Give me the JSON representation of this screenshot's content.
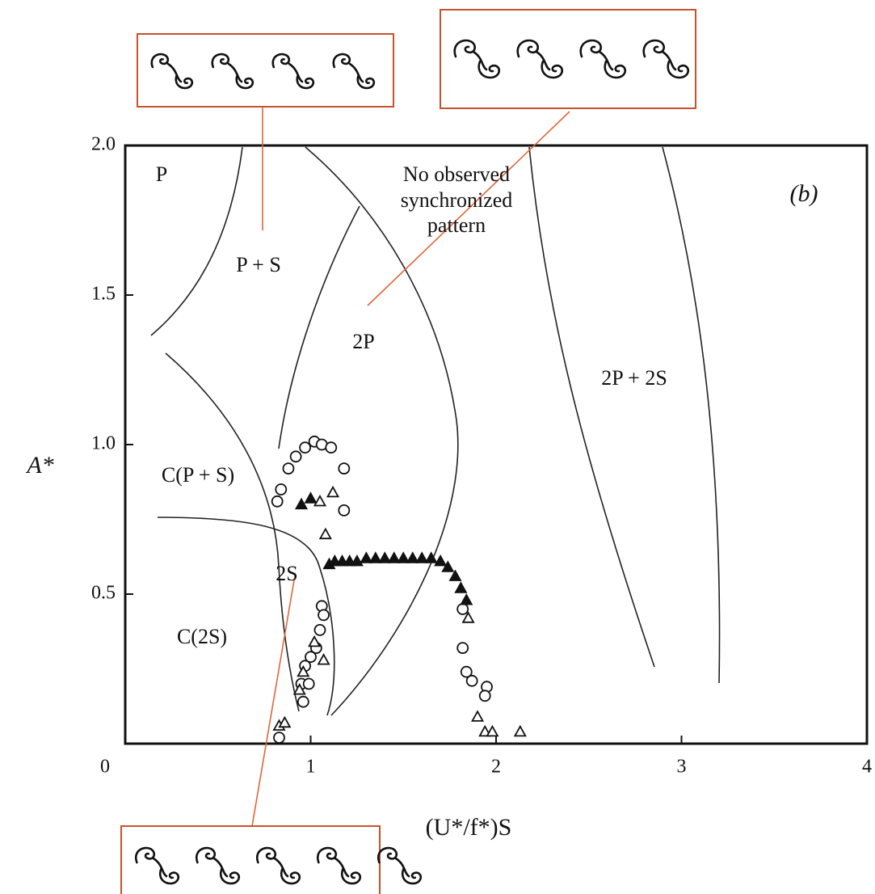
{
  "chart_data": {
    "type": "scatter",
    "xlabel": "(U*/f*)S",
    "ylabel": "A*",
    "panel_label": "(b)",
    "xlim": [
      0,
      4
    ],
    "ylim": [
      0,
      2
    ],
    "xticks": [
      0,
      1,
      2,
      3,
      4
    ],
    "yticks": [
      {
        "value": 0.5,
        "label": "0.5"
      },
      {
        "value": 1.0,
        "label": "1.0"
      },
      {
        "value": 1.5,
        "label": "1.5"
      },
      {
        "value": 2.0,
        "label": "2.0"
      }
    ],
    "annotations": [
      "P",
      "P + S",
      "No observed",
      "synchronized",
      "pattern",
      "2P",
      "2P + 2S",
      "C(P + S)",
      "2S",
      "C(2S)"
    ],
    "series": [
      {
        "marker": "circle",
        "color": "#111111",
        "x": [
          0.82,
          0.84,
          0.88,
          0.92,
          0.97,
          1.02,
          1.06,
          1.11,
          1.18,
          1.18,
          1.06,
          1.07,
          1.05,
          1.03,
          1.0,
          0.97,
          0.95,
          0.99,
          0.96,
          1.82,
          1.82,
          1.84,
          1.87,
          1.95,
          1.94,
          0.83
        ],
        "y": [
          0.81,
          0.85,
          0.92,
          0.96,
          0.99,
          1.01,
          1.0,
          0.99,
          0.92,
          0.78,
          0.46,
          0.43,
          0.38,
          0.32,
          0.29,
          0.26,
          0.2,
          0.2,
          0.14,
          0.45,
          0.32,
          0.24,
          0.21,
          0.19,
          0.16,
          0.02
        ]
      },
      {
        "marker": "triangle",
        "color": "#111111",
        "x": [
          1.08,
          1.05,
          1.12,
          1.02,
          1.07,
          0.96,
          0.94,
          0.83,
          0.86,
          1.85,
          1.9,
          1.94,
          1.98,
          2.13
        ],
        "y": [
          0.7,
          0.81,
          0.84,
          0.34,
          0.28,
          0.24,
          0.18,
          0.06,
          0.07,
          0.42,
          0.09,
          0.04,
          0.04,
          0.04
        ]
      },
      {
        "marker": "filled-triangle",
        "color": "#111111",
        "x": [
          0.95,
          1.0,
          1.1,
          1.13,
          1.17,
          1.21,
          1.25,
          1.3,
          1.35,
          1.4,
          1.45,
          1.5,
          1.55,
          1.6,
          1.65,
          1.7,
          1.74,
          1.78,
          1.81,
          1.84
        ],
        "y": [
          0.8,
          0.82,
          0.6,
          0.61,
          0.61,
          0.61,
          0.61,
          0.62,
          0.62,
          0.62,
          0.62,
          0.62,
          0.62,
          0.62,
          0.62,
          0.61,
          0.59,
          0.56,
          0.52,
          0.48
        ]
      }
    ]
  }
}
